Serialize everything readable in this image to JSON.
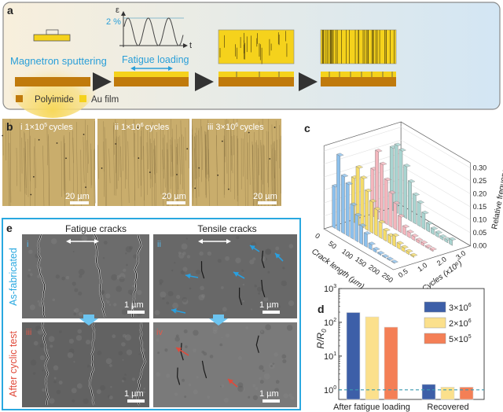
{
  "panel_a": {
    "label": "a",
    "sputter_text": "Magnetron sputtering",
    "strain_symbol": "ε",
    "time_symbol": "t",
    "strain_amplitude": "2 %",
    "fatigue_text": "Fatigue loading",
    "legend": [
      {
        "label": "Polyimide",
        "color": "#c07a0c"
      },
      {
        "label": "Au film",
        "color": "#f5d21c"
      }
    ]
  },
  "panel_b": {
    "label": "b",
    "images": [
      {
        "numeral": "i",
        "base": "1×10",
        "exp": "5",
        "suffix": "cycles",
        "scale": "20 µm"
      },
      {
        "numeral": "ii",
        "base": "1×10",
        "exp": "6",
        "suffix": "cycles",
        "scale": "20 µm"
      },
      {
        "numeral": "iii",
        "base": "3×10",
        "exp": "6",
        "suffix": "cycles",
        "scale": "20 µm"
      }
    ]
  },
  "panel_e": {
    "label": "e",
    "col_titles": [
      "Fatigue cracks",
      "Tensile cracks"
    ],
    "row_titles": [
      "As-fabricated",
      "After cyclic test"
    ],
    "numerals": [
      "i",
      "ii",
      "iii",
      "iv"
    ],
    "scale": "1 µm",
    "colors": {
      "border": "#29a8e0",
      "as_fab": "#29a8e0",
      "after": "#e04a3a"
    }
  },
  "chart_data": [
    {
      "panel": "c",
      "type": "bar",
      "subtype": "3d-histogram",
      "x_label": "Crack length (µm)",
      "x_ticks": [
        "0",
        "50",
        "100",
        "150",
        "200",
        "250"
      ],
      "y_label": "Cycles (x10⁶)",
      "y_ticks": [
        "0.5",
        "1.0",
        "2.0",
        "3.0"
      ],
      "z_label": "Relative frequency",
      "z_ticks": [
        "0.00",
        "0.05",
        "0.10",
        "0.15",
        "0.20",
        "0.25",
        "0.30"
      ],
      "zlim": [
        0,
        0.3
      ],
      "bin_width": 17,
      "series": [
        {
          "cycles": 3.0,
          "color": "#a9d4d0",
          "values": [
            0.24,
            0.26,
            0.25,
            0.2,
            0.15,
            0.11,
            0.09,
            0.06,
            0.03,
            0.02,
            0.015,
            0.01,
            0.01,
            0.02
          ]
        },
        {
          "cycles": 2.0,
          "color": "#f4b6bd",
          "values": [
            0.18,
            0.26,
            0.22,
            0.17,
            0.13,
            0.1,
            0.06,
            0.03,
            0.02,
            0.015,
            0.01,
            0.01,
            0.005,
            0.005
          ]
        },
        {
          "cycles": 1.0,
          "color": "#f5dc6a",
          "values": [
            0.17,
            0.22,
            0.19,
            0.15,
            0.12,
            0.1,
            0.06,
            0.04,
            0.03,
            0.04,
            0.02,
            0.015,
            0.01,
            0.005
          ]
        },
        {
          "cycles": 0.5,
          "color": "#8cc0ec",
          "values": [
            0.16,
            0.29,
            0.22,
            0.2,
            0.13,
            0.1,
            0.07,
            0.05,
            0.02,
            0.01,
            0.005,
            0.003,
            0.003,
            0.002
          ]
        }
      ]
    },
    {
      "panel": "d",
      "type": "bar",
      "ylabel": "R/R",
      "ylabel_sub": "0",
      "yscale": "log",
      "ylim": [
        0.52,
        1000
      ],
      "y_ticks": [
        {
          "base": "10",
          "exp": "0",
          "value": 1
        },
        {
          "base": "10",
          "exp": "1",
          "value": 10
        },
        {
          "base": "10",
          "exp": "2",
          "value": 100
        },
        {
          "base": "10",
          "exp": "3",
          "value": 1000
        }
      ],
      "categories": [
        "After fatigue loading",
        "Recovered"
      ],
      "series": [
        {
          "name": "3×10",
          "exp": "6",
          "color": "#3d5fa8",
          "values": [
            195,
            1.45
          ]
        },
        {
          "name": "2×10",
          "exp": "6",
          "color": "#fbe08c",
          "values": [
            145,
            1.2
          ]
        },
        {
          "name": "5×10",
          "exp": "5",
          "color": "#f47f56",
          "values": [
            72,
            1.2
          ]
        }
      ],
      "reference_line": {
        "value": 1,
        "color": "#3a9ab0",
        "style": "dashed"
      },
      "legend_position": "top-right"
    }
  ]
}
